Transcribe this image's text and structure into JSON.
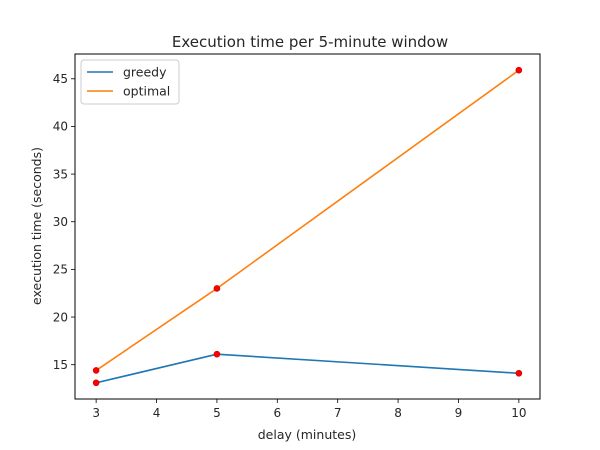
{
  "chart_data": {
    "type": "line",
    "title": "Execution time per 5-minute window",
    "xlabel": "delay (minutes)",
    "ylabel": "execution time (seconds)",
    "xlim": [
      2.65,
      10.35
    ],
    "ylim": [
      11.4,
      47.6
    ],
    "xticks": [
      3,
      4,
      5,
      6,
      7,
      8,
      9,
      10
    ],
    "yticks": [
      15,
      20,
      25,
      30,
      35,
      40,
      45
    ],
    "grid": false,
    "legend_position": "top-left",
    "marker_color": "#ff0000",
    "series": [
      {
        "name": "greedy",
        "color": "#1f77b4",
        "x": [
          3,
          5,
          10
        ],
        "y": [
          13.1,
          16.1,
          14.1
        ]
      },
      {
        "name": "optimal",
        "color": "#ff7f0e",
        "x": [
          3,
          5,
          10
        ],
        "y": [
          14.4,
          23.0,
          45.9
        ]
      }
    ]
  }
}
